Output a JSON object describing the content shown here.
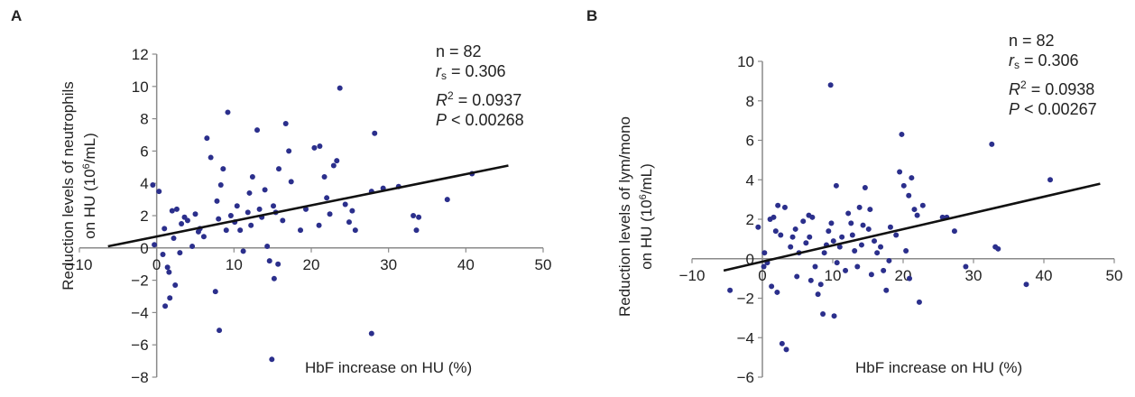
{
  "chart_data": [
    {
      "panel": "A",
      "type": "scatter",
      "xlabel": "HbF increase on HU (%)",
      "ylabel_line1": "Reduction levels of neutrophils",
      "ylabel_line2_pre": "on HU (10",
      "ylabel_line2_sup": "6",
      "ylabel_line2_post": "/mL)",
      "xlim": [
        -10,
        50
      ],
      "ylim": [
        -8,
        12
      ],
      "xticks": [
        -10,
        0,
        10,
        20,
        30,
        40,
        50
      ],
      "yticks": [
        -8,
        -6,
        -4,
        -2,
        0,
        2,
        4,
        6,
        8,
        10,
        12
      ],
      "xtick_labels": [
        "−10",
        "0",
        "10",
        "20",
        "30",
        "40",
        "50"
      ],
      "ytick_labels": [
        "−8",
        "−6",
        "−4",
        "−2",
        "0",
        "2",
        "4",
        "6",
        "8",
        "10",
        "12"
      ],
      "stats": {
        "n": "n = 82",
        "rs_sym": "r",
        "rs_sub": "s",
        "rs_val": " = 0.306",
        "r2_sym": "R",
        "r2_sup": "2",
        "r2_val": " = 0.0937",
        "p_sym": "P",
        "p_val": " < 0.00268"
      },
      "trendline": [
        [
          -6.3,
          0.1
        ],
        [
          45.5,
          5.1
        ]
      ],
      "points": [
        [
          -0.5,
          3.9
        ],
        [
          0.3,
          3.5
        ],
        [
          -0.3,
          0.2
        ],
        [
          0.8,
          -0.4
        ],
        [
          1,
          1.2
        ],
        [
          1.4,
          -1.2
        ],
        [
          1.6,
          -1.5
        ],
        [
          2,
          2.3
        ],
        [
          2.2,
          0.6
        ],
        [
          2.6,
          2.4
        ],
        [
          3,
          -0.3
        ],
        [
          3.2,
          1.5
        ],
        [
          3.6,
          1.9
        ],
        [
          2.4,
          -2.3
        ],
        [
          1.7,
          -3.1
        ],
        [
          1.1,
          -3.6
        ],
        [
          5,
          2.1
        ],
        [
          5.4,
          1
        ],
        [
          5.6,
          1.2
        ],
        [
          4.6,
          0.1
        ],
        [
          6.5,
          6.8
        ],
        [
          7,
          5.6
        ],
        [
          7.8,
          2.9
        ],
        [
          8,
          1.8
        ],
        [
          8.3,
          3.9
        ],
        [
          8.6,
          4.9
        ],
        [
          9.2,
          8.4
        ],
        [
          9.6,
          2
        ],
        [
          10.1,
          1.6
        ],
        [
          10.4,
          2.6
        ],
        [
          10.8,
          1.1
        ],
        [
          11.2,
          -0.2
        ],
        [
          7.6,
          -2.7
        ],
        [
          8.1,
          -5.1
        ],
        [
          12,
          3.4
        ],
        [
          12.4,
          4.4
        ],
        [
          13,
          7.3
        ],
        [
          13.3,
          2.4
        ],
        [
          13.6,
          1.9
        ],
        [
          14,
          3.6
        ],
        [
          14.3,
          0.1
        ],
        [
          14.6,
          -0.8
        ],
        [
          15.1,
          2.6
        ],
        [
          15.4,
          2.2
        ],
        [
          15.8,
          4.9
        ],
        [
          16.3,
          1.7
        ],
        [
          16.7,
          7.7
        ],
        [
          17.1,
          6
        ],
        [
          17.4,
          4.1
        ],
        [
          15.7,
          -1
        ],
        [
          15.2,
          -1.9
        ],
        [
          14.9,
          -6.9
        ],
        [
          20.4,
          6.2
        ],
        [
          21.1,
          6.3
        ],
        [
          21.7,
          4.4
        ],
        [
          22,
          3.1
        ],
        [
          22.4,
          2.1
        ],
        [
          22.9,
          5.1
        ],
        [
          23.3,
          5.4
        ],
        [
          23.7,
          9.9
        ],
        [
          24.4,
          2.7
        ],
        [
          24.9,
          1.6
        ],
        [
          25.3,
          2.3
        ],
        [
          25.7,
          1.1
        ],
        [
          21,
          1.4
        ],
        [
          27.8,
          3.5
        ],
        [
          28.2,
          7.1
        ],
        [
          29.3,
          3.7
        ],
        [
          31.3,
          3.8
        ],
        [
          33.2,
          2
        ],
        [
          33.6,
          1.1
        ],
        [
          33.9,
          1.9
        ],
        [
          37.6,
          3
        ],
        [
          40.8,
          4.6
        ],
        [
          27.8,
          -5.3
        ],
        [
          18.6,
          1.1
        ],
        [
          19.3,
          2.4
        ],
        [
          11.8,
          2.2
        ],
        [
          6.1,
          0.7
        ],
        [
          4,
          1.7
        ],
        [
          9,
          1.1
        ],
        [
          12.2,
          1.4
        ]
      ]
    },
    {
      "panel": "B",
      "type": "scatter",
      "xlabel": "HbF increase on HU (%)",
      "ylabel_line1": "Reduction levels of lym/mono",
      "ylabel_line2_pre": "on HU (10",
      "ylabel_line2_sup": "6",
      "ylabel_line2_post": "/mL)",
      "xlim": [
        -10,
        50
      ],
      "ylim": [
        -6,
        10
      ],
      "xticks": [
        -10,
        0,
        10,
        20,
        30,
        40,
        50
      ],
      "yticks": [
        -6,
        -4,
        -2,
        0,
        2,
        4,
        6,
        8,
        10
      ],
      "xtick_labels": [
        "−10",
        "0",
        "10",
        "20",
        "30",
        "40",
        "50"
      ],
      "ytick_labels": [
        "−6",
        "−4",
        "−2",
        "0",
        "2",
        "4",
        "6",
        "8",
        "10"
      ],
      "stats": {
        "n": "n = 82",
        "rs_sym": "r",
        "rs_sub": "s",
        "rs_val": " = 0.306",
        "r2_sym": "R",
        "r2_sup": "2",
        "r2_val": " = 0.0938",
        "p_sym": "P",
        "p_val": " < 0.00267"
      },
      "trendline": [
        [
          -5.5,
          -0.6
        ],
        [
          48,
          3.8
        ]
      ],
      "points": [
        [
          -4.6,
          -1.6
        ],
        [
          -0.6,
          1.6
        ],
        [
          0.3,
          0.3
        ],
        [
          0.7,
          -0.2
        ],
        [
          1.1,
          2
        ],
        [
          1.6,
          2.1
        ],
        [
          2.2,
          2.7
        ],
        [
          2.6,
          1.2
        ],
        [
          1.3,
          -1.4
        ],
        [
          2.1,
          -1.7
        ],
        [
          2.8,
          -4.3
        ],
        [
          3.4,
          -4.6
        ],
        [
          4,
          0.6
        ],
        [
          4.3,
          1.1
        ],
        [
          4.7,
          1.5
        ],
        [
          5.2,
          0.3
        ],
        [
          5.8,
          1.9
        ],
        [
          6.2,
          0.8
        ],
        [
          6.7,
          1.1
        ],
        [
          7.1,
          2.1
        ],
        [
          7.5,
          -0.4
        ],
        [
          7.9,
          -1.8
        ],
        [
          8.3,
          -1.3
        ],
        [
          8.6,
          -2.8
        ],
        [
          9.1,
          0.7
        ],
        [
          9.4,
          1.4
        ],
        [
          9.8,
          1.8
        ],
        [
          9.7,
          8.8
        ],
        [
          10.2,
          -2.9
        ],
        [
          10.6,
          -0.2
        ],
        [
          11,
          0.6
        ],
        [
          11.3,
          1.1
        ],
        [
          11.8,
          -0.6
        ],
        [
          12.2,
          2.3
        ],
        [
          12.6,
          1.8
        ],
        [
          13.1,
          0.4
        ],
        [
          13.5,
          -0.4
        ],
        [
          13.8,
          2.6
        ],
        [
          14.3,
          1.7
        ],
        [
          14.6,
          3.6
        ],
        [
          15.1,
          1.5
        ],
        [
          15.5,
          -0.8
        ],
        [
          15.9,
          0.9
        ],
        [
          16.3,
          0.3
        ],
        [
          16.8,
          0.6
        ],
        [
          17.2,
          -0.6
        ],
        [
          17.6,
          -1.6
        ],
        [
          18,
          -0.1
        ],
        [
          19.5,
          4.4
        ],
        [
          19.8,
          6.3
        ],
        [
          20.1,
          3.7
        ],
        [
          20.4,
          0.4
        ],
        [
          20.8,
          3.2
        ],
        [
          21.2,
          4.1
        ],
        [
          21.6,
          2.5
        ],
        [
          22,
          2.2
        ],
        [
          22.3,
          -2.2
        ],
        [
          22.8,
          2.7
        ],
        [
          25.6,
          2.1
        ],
        [
          26.2,
          2.1
        ],
        [
          27.3,
          1.4
        ],
        [
          28.9,
          -0.4
        ],
        [
          32.6,
          5.8
        ],
        [
          33.1,
          0.6
        ],
        [
          33.5,
          0.5
        ],
        [
          37.5,
          -1.3
        ],
        [
          40.9,
          4
        ],
        [
          20.9,
          -1
        ],
        [
          18.2,
          1.6
        ],
        [
          10.5,
          3.7
        ],
        [
          3.2,
          2.6
        ],
        [
          0.2,
          -0.4
        ],
        [
          8.8,
          0.3
        ],
        [
          6.6,
          2.2
        ],
        [
          12.8,
          1.2
        ],
        [
          4.9,
          -0.9
        ],
        [
          15.3,
          2.5
        ],
        [
          1.9,
          1.4
        ],
        [
          10.1,
          0.9
        ],
        [
          19,
          1.2
        ],
        [
          6.9,
          -1.1
        ],
        [
          14.1,
          0.7
        ]
      ]
    }
  ]
}
